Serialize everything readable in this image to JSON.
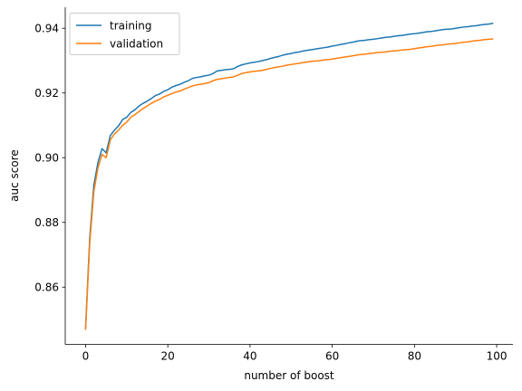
{
  "chart_data": {
    "type": "line",
    "title": "",
    "xlabel": "number of boost",
    "ylabel": "auc score",
    "xlim": [
      -4.95,
      103.95
    ],
    "ylim": [
      0.8423,
      0.9465
    ],
    "xticks": [
      0,
      20,
      40,
      60,
      80,
      100
    ],
    "yticks": [
      0.86,
      0.88,
      0.9,
      0.92,
      0.94
    ],
    "ytick_labels": [
      "0.86",
      "0.88",
      "0.90",
      "0.92",
      "0.94"
    ],
    "grid": false,
    "legend_position": "top-left",
    "x": [
      0,
      1,
      2,
      3,
      4,
      5,
      6,
      7,
      8,
      9,
      10,
      11,
      12,
      13,
      14,
      15,
      16,
      17,
      18,
      19,
      20,
      21,
      22,
      23,
      24,
      25,
      26,
      27,
      28,
      29,
      30,
      31,
      32,
      33,
      34,
      35,
      36,
      37,
      38,
      39,
      40,
      41,
      42,
      43,
      44,
      45,
      46,
      47,
      48,
      49,
      50,
      51,
      52,
      53,
      54,
      55,
      56,
      57,
      58,
      59,
      60,
      61,
      62,
      63,
      64,
      65,
      66,
      67,
      68,
      69,
      70,
      71,
      72,
      73,
      74,
      75,
      76,
      77,
      78,
      79,
      80,
      81,
      82,
      83,
      84,
      85,
      86,
      87,
      88,
      89,
      90,
      91,
      92,
      93,
      94,
      95,
      96,
      97,
      98,
      99
    ],
    "series": [
      {
        "name": "training",
        "color": "#1f77b4",
        "values": [
          0.8475,
          0.875,
          0.8915,
          0.8985,
          0.9028,
          0.9015,
          0.9068,
          0.9085,
          0.9098,
          0.9118,
          0.9125,
          0.914,
          0.9148,
          0.916,
          0.9168,
          0.9175,
          0.9183,
          0.9192,
          0.9197,
          0.9205,
          0.921,
          0.9218,
          0.9223,
          0.9227,
          0.9233,
          0.9238,
          0.9245,
          0.9248,
          0.925,
          0.9253,
          0.9255,
          0.926,
          0.9268,
          0.927,
          0.9272,
          0.9273,
          0.9275,
          0.9282,
          0.9287,
          0.929,
          0.9293,
          0.9295,
          0.9297,
          0.93,
          0.9303,
          0.9307,
          0.931,
          0.9313,
          0.9317,
          0.932,
          0.9322,
          0.9325,
          0.9327,
          0.933,
          0.9332,
          0.9334,
          0.9336,
          0.9338,
          0.934,
          0.9342,
          0.9345,
          0.9347,
          0.935,
          0.9352,
          0.9355,
          0.9357,
          0.936,
          0.9362,
          0.9363,
          0.9365,
          0.9366,
          0.9368,
          0.937,
          0.9372,
          0.9373,
          0.9375,
          0.9377,
          0.9378,
          0.938,
          0.9382,
          0.9383,
          0.9385,
          0.9387,
          0.9389,
          0.939,
          0.9392,
          0.9394,
          0.9396,
          0.9397,
          0.9398,
          0.94,
          0.9402,
          0.9404,
          0.9405,
          0.9407,
          0.9408,
          0.941,
          0.9412,
          0.9413,
          0.9415
        ]
      },
      {
        "name": "validation",
        "color": "#ff7f0e",
        "values": [
          0.847,
          0.8735,
          0.8895,
          0.8968,
          0.901,
          0.9,
          0.9055,
          0.9073,
          0.9085,
          0.91,
          0.911,
          0.9125,
          0.9133,
          0.9143,
          0.9152,
          0.916,
          0.9168,
          0.9175,
          0.918,
          0.9188,
          0.9193,
          0.9198,
          0.9203,
          0.9206,
          0.9212,
          0.9217,
          0.9222,
          0.9225,
          0.9227,
          0.9229,
          0.9232,
          0.9238,
          0.9242,
          0.9244,
          0.9246,
          0.9248,
          0.925,
          0.9255,
          0.926,
          0.9263,
          0.9265,
          0.9267,
          0.9268,
          0.927,
          0.9273,
          0.9276,
          0.9279,
          0.9281,
          0.9283,
          0.9286,
          0.9288,
          0.929,
          0.9292,
          0.9294,
          0.9296,
          0.9298,
          0.9299,
          0.93,
          0.9302,
          0.9303,
          0.9305,
          0.9307,
          0.9309,
          0.9311,
          0.9313,
          0.9315,
          0.9317,
          0.9319,
          0.932,
          0.9322,
          0.9323,
          0.9325,
          0.9326,
          0.9327,
          0.9329,
          0.933,
          0.9331,
          0.9333,
          0.9334,
          0.9335,
          0.9337,
          0.9339,
          0.9341,
          0.9343,
          0.9344,
          0.9346,
          0.9348,
          0.9349,
          0.9351,
          0.9352,
          0.9353,
          0.9355,
          0.9357,
          0.9358,
          0.936,
          0.9362,
          0.9363,
          0.9365,
          0.9366,
          0.9367
        ]
      }
    ]
  }
}
